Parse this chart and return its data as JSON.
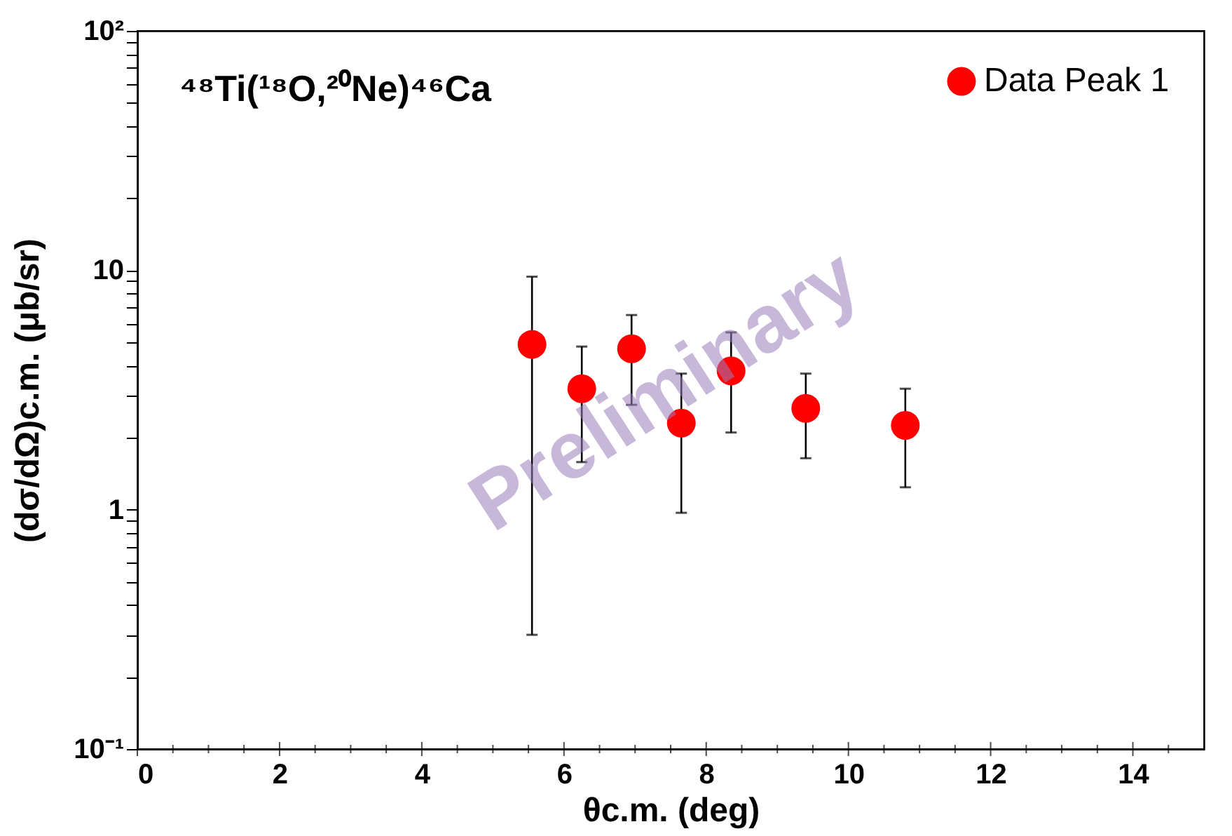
{
  "chart_data": {
    "type": "scatter",
    "title": "⁴⁸Ti(¹⁸O,²⁰Ne)⁴⁶Ca",
    "xlabel": "θc.m. (deg)",
    "ylabel": "(dσ/dΩ)c.m. (μb/sr)",
    "annotations": [
      "Preliminary"
    ],
    "log": "y",
    "grid": false,
    "legend": "top right",
    "marker": "circle",
    "xlim": [
      0,
      15
    ],
    "ylim": [
      0.1,
      100
    ],
    "xticks": [
      0,
      {
        "value": 0.5,
        "label": null
      },
      {
        "value": 1,
        "label": null
      },
      {
        "value": 1.5,
        "label": null
      },
      2,
      {
        "value": 2.5,
        "label": null
      },
      {
        "value": 3,
        "label": null
      },
      {
        "value": 3.5,
        "label": null
      },
      4,
      {
        "value": 4.5,
        "label": null
      },
      {
        "value": 5,
        "label": null
      },
      {
        "value": 5.5,
        "label": null
      },
      6,
      {
        "value": 6.5,
        "label": null
      },
      {
        "value": 7,
        "label": null
      },
      {
        "value": 7.5,
        "label": null
      },
      8,
      {
        "value": 8.5,
        "label": null
      },
      {
        "value": 9,
        "label": null
      },
      {
        "value": 9.5,
        "label": null
      },
      10,
      {
        "value": 10.5,
        "label": null
      },
      {
        "value": 11,
        "label": null
      },
      {
        "value": 11.5,
        "label": null
      },
      12,
      {
        "value": 12.5,
        "label": null
      },
      {
        "value": 13,
        "label": null
      },
      {
        "value": 13.5,
        "label": null
      },
      14,
      {
        "value": 14.5,
        "label": null
      }
    ],
    "yticks": [
      {
        "value": 0.1,
        "label": "10⁻¹"
      },
      {
        "value": 0.2,
        "label": null
      },
      {
        "value": 0.3,
        "label": null
      },
      {
        "value": 0.4,
        "label": null
      },
      {
        "value": 0.5,
        "label": null
      },
      {
        "value": 0.6,
        "label": null
      },
      {
        "value": 0.7,
        "label": null
      },
      {
        "value": 0.8,
        "label": null
      },
      {
        "value": 0.9,
        "label": null
      },
      1,
      {
        "value": 2,
        "label": null
      },
      {
        "value": 3,
        "label": null
      },
      {
        "value": 4,
        "label": null
      },
      {
        "value": 5,
        "label": null
      },
      {
        "value": 6,
        "label": null
      },
      {
        "value": 7,
        "label": null
      },
      {
        "value": 8,
        "label": null
      },
      {
        "value": 9,
        "label": null
      },
      10,
      {
        "value": 20,
        "label": null
      },
      {
        "value": 30,
        "label": null
      },
      {
        "value": 40,
        "label": null
      },
      {
        "value": 50,
        "label": null
      },
      {
        "value": 60,
        "label": null
      },
      {
        "value": 70,
        "label": null
      },
      {
        "value": 80,
        "label": null
      },
      {
        "value": 90,
        "label": null
      },
      {
        "value": 100,
        "label": "10²"
      }
    ],
    "series": [
      {
        "name": "Data Peak 1",
        "color": "#ff0000",
        "x": [
          5.55,
          6.25,
          6.95,
          7.65,
          8.35,
          9.4,
          10.8
        ],
        "values": [
          4.9,
          3.2,
          4.7,
          2.3,
          3.8,
          2.65,
          2.25
        ],
        "errors": [
          [
            0.3,
            9.4
          ],
          [
            1.58,
            4.8
          ],
          [
            2.74,
            6.5
          ],
          [
            0.97,
            3.7
          ],
          [
            2.1,
            5.5
          ],
          [
            1.64,
            3.7
          ],
          [
            1.24,
            3.2
          ]
        ]
      }
    ]
  }
}
